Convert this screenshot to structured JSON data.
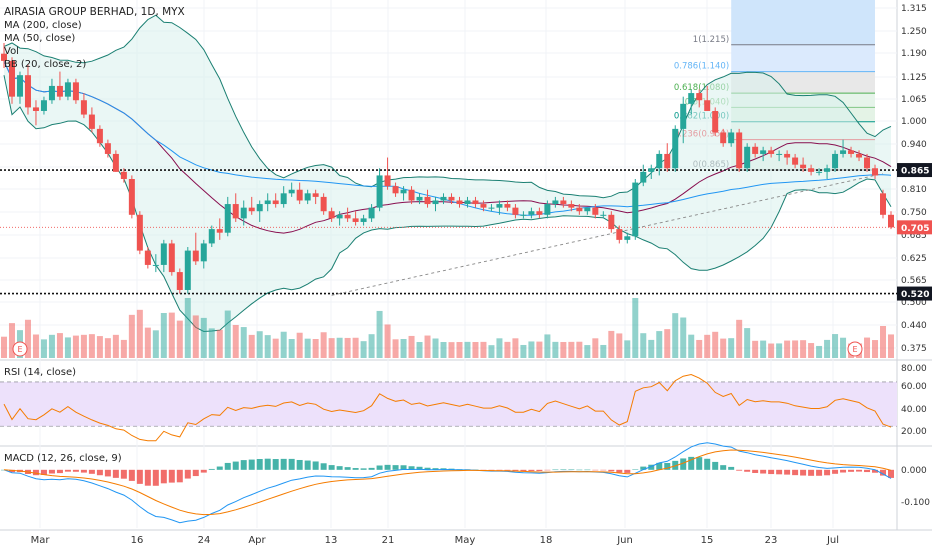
{
  "header": {
    "title": "AIRASIA GROUP BERHAD, 1D, MYX",
    "indicators": [
      "MA (200, close)",
      "MA (50, close)",
      "Vol",
      "BB (20, close, 2)"
    ],
    "rsi_label": "RSI (14, close)",
    "macd_label": "MACD (12, 26, close, 9)"
  },
  "colors": {
    "up": "#26a69a",
    "down": "#ef5350",
    "ma50": "#2196f3",
    "ma200": "#880e4f",
    "bb": "#1a7f72",
    "bb_fill": "#d9f0ec",
    "rsi": "#f57c00",
    "rsi_band": "#ede1fb",
    "macd": "#2196f3",
    "signal": "#f57c00"
  },
  "chart_data": [
    {
      "type": "candlestick",
      "title": "AIRASIA GROUP BERHAD, 1D, MYX",
      "x_tick_labels": [
        "Mar",
        "16",
        "24",
        "Apr",
        "13",
        "21",
        "May",
        "18",
        "Jun",
        "15",
        "23",
        "Jul"
      ],
      "y_tick_labels": [
        "1.315",
        "1.250",
        "1.190",
        "1.125",
        "1.065",
        "1.000",
        "0.940",
        "0.875",
        "0.810",
        "0.750",
        "0.685",
        "0.625",
        "0.565",
        "0.500",
        "0.440",
        "0.375"
      ],
      "ylim": [
        0.34,
        1.34
      ],
      "price_tags": [
        {
          "value": 0.865,
          "label": "0.865",
          "style": "dark"
        },
        {
          "value": 0.705,
          "label": "0.705",
          "style": "red"
        },
        {
          "value": 0.52,
          "label": "0.520",
          "style": "dark"
        }
      ],
      "horizontal_levels": [
        0.865,
        0.52
      ],
      "fibonacci": [
        {
          "label": "1(1.215)",
          "value": 1.215
        },
        {
          "label": "0.786(1.140)",
          "value": 1.14
        },
        {
          "label": "0.618(1.080)",
          "value": 1.08
        },
        {
          "label": "0.5(1.040)",
          "value": 1.04
        },
        {
          "label": "0.382(1.000)",
          "value": 1.0
        },
        {
          "label": "0.236(0.950)",
          "value": 0.95
        },
        {
          "label": "0(0.865)",
          "value": 0.865
        }
      ],
      "candles": [
        {
          "o": 1.19,
          "h": 1.22,
          "l": 1.15,
          "c": 1.17
        },
        {
          "o": 1.17,
          "h": 1.18,
          "l": 1.05,
          "c": 1.07
        },
        {
          "o": 1.07,
          "h": 1.14,
          "l": 1.05,
          "c": 1.13
        },
        {
          "o": 1.13,
          "h": 1.16,
          "l": 1.02,
          "c": 1.04
        },
        {
          "o": 1.04,
          "h": 1.06,
          "l": 0.99,
          "c": 1.03
        },
        {
          "o": 1.03,
          "h": 1.07,
          "l": 1.02,
          "c": 1.06
        },
        {
          "o": 1.06,
          "h": 1.12,
          "l": 1.05,
          "c": 1.1
        },
        {
          "o": 1.1,
          "h": 1.14,
          "l": 1.06,
          "c": 1.07
        },
        {
          "o": 1.07,
          "h": 1.12,
          "l": 1.06,
          "c": 1.11
        },
        {
          "o": 1.11,
          "h": 1.12,
          "l": 1.05,
          "c": 1.06
        },
        {
          "o": 1.06,
          "h": 1.08,
          "l": 1.01,
          "c": 1.02
        },
        {
          "o": 1.02,
          "h": 1.04,
          "l": 0.97,
          "c": 0.98
        },
        {
          "o": 0.98,
          "h": 0.99,
          "l": 0.93,
          "c": 0.94
        },
        {
          "o": 0.94,
          "h": 0.95,
          "l": 0.9,
          "c": 0.91
        },
        {
          "o": 0.91,
          "h": 0.92,
          "l": 0.86,
          "c": 0.86
        },
        {
          "o": 0.86,
          "h": 0.87,
          "l": 0.83,
          "c": 0.84
        },
        {
          "o": 0.84,
          "h": 0.85,
          "l": 0.73,
          "c": 0.74
        },
        {
          "o": 0.74,
          "h": 0.75,
          "l": 0.63,
          "c": 0.64
        },
        {
          "o": 0.64,
          "h": 0.65,
          "l": 0.59,
          "c": 0.6
        },
        {
          "o": 0.6,
          "h": 0.63,
          "l": 0.58,
          "c": 0.6
        },
        {
          "o": 0.6,
          "h": 0.67,
          "l": 0.58,
          "c": 0.66
        },
        {
          "o": 0.66,
          "h": 0.67,
          "l": 0.57,
          "c": 0.58
        },
        {
          "o": 0.58,
          "h": 0.59,
          "l": 0.52,
          "c": 0.53
        },
        {
          "o": 0.53,
          "h": 0.65,
          "l": 0.52,
          "c": 0.64
        },
        {
          "o": 0.64,
          "h": 0.69,
          "l": 0.6,
          "c": 0.61
        },
        {
          "o": 0.61,
          "h": 0.67,
          "l": 0.59,
          "c": 0.66
        },
        {
          "o": 0.66,
          "h": 0.71,
          "l": 0.65,
          "c": 0.7
        },
        {
          "o": 0.7,
          "h": 0.73,
          "l": 0.67,
          "c": 0.69
        },
        {
          "o": 0.69,
          "h": 0.79,
          "l": 0.68,
          "c": 0.77
        },
        {
          "o": 0.77,
          "h": 0.8,
          "l": 0.72,
          "c": 0.73
        },
        {
          "o": 0.73,
          "h": 0.78,
          "l": 0.71,
          "c": 0.76
        },
        {
          "o": 0.76,
          "h": 0.79,
          "l": 0.74,
          "c": 0.75
        },
        {
          "o": 0.75,
          "h": 0.78,
          "l": 0.72,
          "c": 0.77
        },
        {
          "o": 0.77,
          "h": 0.8,
          "l": 0.75,
          "c": 0.78
        },
        {
          "o": 0.78,
          "h": 0.8,
          "l": 0.76,
          "c": 0.77
        },
        {
          "o": 0.77,
          "h": 0.82,
          "l": 0.76,
          "c": 0.8
        },
        {
          "o": 0.8,
          "h": 0.83,
          "l": 0.79,
          "c": 0.81
        },
        {
          "o": 0.81,
          "h": 0.83,
          "l": 0.77,
          "c": 0.78
        },
        {
          "o": 0.78,
          "h": 0.81,
          "l": 0.77,
          "c": 0.8
        },
        {
          "o": 0.8,
          "h": 0.81,
          "l": 0.77,
          "c": 0.79
        },
        {
          "o": 0.79,
          "h": 0.8,
          "l": 0.74,
          "c": 0.75
        },
        {
          "o": 0.75,
          "h": 0.76,
          "l": 0.72,
          "c": 0.73
        },
        {
          "o": 0.73,
          "h": 0.75,
          "l": 0.71,
          "c": 0.74
        },
        {
          "o": 0.74,
          "h": 0.76,
          "l": 0.72,
          "c": 0.73
        },
        {
          "o": 0.73,
          "h": 0.75,
          "l": 0.71,
          "c": 0.72
        },
        {
          "o": 0.72,
          "h": 0.74,
          "l": 0.71,
          "c": 0.73
        },
        {
          "o": 0.73,
          "h": 0.77,
          "l": 0.72,
          "c": 0.76
        },
        {
          "o": 0.76,
          "h": 0.87,
          "l": 0.75,
          "c": 0.85
        },
        {
          "o": 0.85,
          "h": 0.9,
          "l": 0.81,
          "c": 0.82
        },
        {
          "o": 0.82,
          "h": 0.83,
          "l": 0.79,
          "c": 0.8
        },
        {
          "o": 0.8,
          "h": 0.82,
          "l": 0.78,
          "c": 0.81
        },
        {
          "o": 0.81,
          "h": 0.82,
          "l": 0.77,
          "c": 0.78
        },
        {
          "o": 0.78,
          "h": 0.8,
          "l": 0.77,
          "c": 0.79
        },
        {
          "o": 0.79,
          "h": 0.81,
          "l": 0.76,
          "c": 0.77
        },
        {
          "o": 0.77,
          "h": 0.79,
          "l": 0.75,
          "c": 0.78
        },
        {
          "o": 0.78,
          "h": 0.8,
          "l": 0.77,
          "c": 0.79
        },
        {
          "o": 0.79,
          "h": 0.8,
          "l": 0.77,
          "c": 0.78
        },
        {
          "o": 0.78,
          "h": 0.79,
          "l": 0.76,
          "c": 0.77
        },
        {
          "o": 0.77,
          "h": 0.79,
          "l": 0.76,
          "c": 0.78
        },
        {
          "o": 0.78,
          "h": 0.79,
          "l": 0.76,
          "c": 0.77
        },
        {
          "o": 0.77,
          "h": 0.78,
          "l": 0.75,
          "c": 0.76
        },
        {
          "o": 0.76,
          "h": 0.77,
          "l": 0.75,
          "c": 0.76
        },
        {
          "o": 0.76,
          "h": 0.78,
          "l": 0.74,
          "c": 0.77
        },
        {
          "o": 0.77,
          "h": 0.78,
          "l": 0.75,
          "c": 0.76
        },
        {
          "o": 0.76,
          "h": 0.77,
          "l": 0.73,
          "c": 0.74
        },
        {
          "o": 0.74,
          "h": 0.75,
          "l": 0.73,
          "c": 0.74
        },
        {
          "o": 0.74,
          "h": 0.76,
          "l": 0.73,
          "c": 0.75
        },
        {
          "o": 0.75,
          "h": 0.76,
          "l": 0.73,
          "c": 0.74
        },
        {
          "o": 0.74,
          "h": 0.78,
          "l": 0.73,
          "c": 0.77
        },
        {
          "o": 0.77,
          "h": 0.79,
          "l": 0.76,
          "c": 0.78
        },
        {
          "o": 0.78,
          "h": 0.79,
          "l": 0.76,
          "c": 0.77
        },
        {
          "o": 0.77,
          "h": 0.78,
          "l": 0.75,
          "c": 0.76
        },
        {
          "o": 0.76,
          "h": 0.77,
          "l": 0.74,
          "c": 0.75
        },
        {
          "o": 0.75,
          "h": 0.76,
          "l": 0.74,
          "c": 0.76
        },
        {
          "o": 0.76,
          "h": 0.77,
          "l": 0.73,
          "c": 0.74
        },
        {
          "o": 0.74,
          "h": 0.75,
          "l": 0.73,
          "c": 0.74
        },
        {
          "o": 0.74,
          "h": 0.75,
          "l": 0.69,
          "c": 0.7
        },
        {
          "o": 0.7,
          "h": 0.71,
          "l": 0.66,
          "c": 0.67
        },
        {
          "o": 0.67,
          "h": 0.69,
          "l": 0.66,
          "c": 0.68
        },
        {
          "o": 0.68,
          "h": 0.84,
          "l": 0.67,
          "c": 0.83
        },
        {
          "o": 0.83,
          "h": 0.88,
          "l": 0.82,
          "c": 0.86
        },
        {
          "o": 0.86,
          "h": 0.88,
          "l": 0.84,
          "c": 0.87
        },
        {
          "o": 0.87,
          "h": 0.92,
          "l": 0.85,
          "c": 0.91
        },
        {
          "o": 0.91,
          "h": 0.94,
          "l": 0.86,
          "c": 0.87
        },
        {
          "o": 0.87,
          "h": 0.99,
          "l": 0.86,
          "c": 0.98
        },
        {
          "o": 0.98,
          "h": 1.07,
          "l": 0.94,
          "c": 1.05
        },
        {
          "o": 1.05,
          "h": 1.09,
          "l": 1.02,
          "c": 1.08
        },
        {
          "o": 1.08,
          "h": 1.09,
          "l": 1.04,
          "c": 1.06
        },
        {
          "o": 1.06,
          "h": 1.1,
          "l": 1.03,
          "c": 1.03
        },
        {
          "o": 1.03,
          "h": 1.04,
          "l": 0.96,
          "c": 0.97
        },
        {
          "o": 0.97,
          "h": 0.98,
          "l": 0.93,
          "c": 0.94
        },
        {
          "o": 0.94,
          "h": 0.98,
          "l": 0.93,
          "c": 0.97
        },
        {
          "o": 0.97,
          "h": 0.98,
          "l": 0.86,
          "c": 0.87
        },
        {
          "o": 0.87,
          "h": 0.94,
          "l": 0.86,
          "c": 0.93
        },
        {
          "o": 0.93,
          "h": 0.94,
          "l": 0.9,
          "c": 0.91
        },
        {
          "o": 0.91,
          "h": 0.93,
          "l": 0.89,
          "c": 0.92
        },
        {
          "o": 0.92,
          "h": 0.93,
          "l": 0.9,
          "c": 0.91
        },
        {
          "o": 0.91,
          "h": 0.92,
          "l": 0.89,
          "c": 0.91
        },
        {
          "o": 0.91,
          "h": 0.92,
          "l": 0.88,
          "c": 0.9
        },
        {
          "o": 0.9,
          "h": 0.91,
          "l": 0.87,
          "c": 0.88
        },
        {
          "o": 0.88,
          "h": 0.9,
          "l": 0.86,
          "c": 0.87
        },
        {
          "o": 0.87,
          "h": 0.88,
          "l": 0.85,
          "c": 0.86
        },
        {
          "o": 0.86,
          "h": 0.87,
          "l": 0.85,
          "c": 0.86
        },
        {
          "o": 0.86,
          "h": 0.88,
          "l": 0.84,
          "c": 0.87
        },
        {
          "o": 0.87,
          "h": 0.92,
          "l": 0.86,
          "c": 0.91
        },
        {
          "o": 0.91,
          "h": 0.95,
          "l": 0.9,
          "c": 0.92
        },
        {
          "o": 0.92,
          "h": 0.93,
          "l": 0.9,
          "c": 0.91
        },
        {
          "o": 0.91,
          "h": 0.92,
          "l": 0.89,
          "c": 0.9
        },
        {
          "o": 0.9,
          "h": 0.91,
          "l": 0.86,
          "c": 0.87
        },
        {
          "o": 0.87,
          "h": 0.88,
          "l": 0.84,
          "c": 0.85
        },
        {
          "o": 0.8,
          "h": 0.81,
          "l": 0.73,
          "c": 0.74
        },
        {
          "o": 0.74,
          "h": 0.75,
          "l": 0.7,
          "c": 0.705
        }
      ]
    },
    {
      "type": "line",
      "title": "RSI (14, close)",
      "y_tick_labels": [
        "80.00",
        "60.00",
        "40.00",
        "20.00"
      ],
      "ylim": [
        14,
        88
      ],
      "band": [
        30,
        70
      ]
    },
    {
      "type": "bar",
      "title": "MACD (12, 26, close, 9)",
      "y_tick_labels": [
        "0.000",
        "-0.100"
      ],
      "ylim": [
        -0.16,
        0.06
      ]
    }
  ]
}
